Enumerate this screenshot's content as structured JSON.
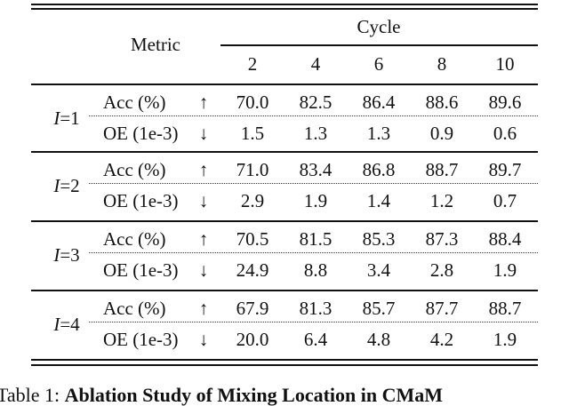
{
  "table": {
    "header": {
      "metric": "Metric",
      "cycle": "Cycle",
      "cycles": [
        "2",
        "4",
        "6",
        "8",
        "10"
      ]
    },
    "groups": [
      {
        "var": "I",
        "index": "=1",
        "rows": [
          {
            "metric": "Acc (%)",
            "arrow": "↑",
            "values": [
              "70.0",
              "82.5",
              "86.4",
              "88.6",
              "89.6"
            ]
          },
          {
            "metric": "OE (1e-3)",
            "arrow": "↓",
            "values": [
              "1.5",
              "1.3",
              "1.3",
              "0.9",
              "0.6"
            ]
          }
        ]
      },
      {
        "var": "I",
        "index": "=2",
        "rows": [
          {
            "metric": "Acc (%)",
            "arrow": "↑",
            "values": [
              "71.0",
              "83.4",
              "86.8",
              "88.7",
              "89.7"
            ]
          },
          {
            "metric": "OE (1e-3)",
            "arrow": "↓",
            "values": [
              "2.9",
              "1.9",
              "1.4",
              "1.2",
              "0.7"
            ]
          }
        ]
      },
      {
        "var": "I",
        "index": "=3",
        "rows": [
          {
            "metric": "Acc (%)",
            "arrow": "↑",
            "values": [
              "70.5",
              "81.5",
              "85.3",
              "87.3",
              "88.4"
            ]
          },
          {
            "metric": "OE (1e-3)",
            "arrow": "↓",
            "values": [
              "24.9",
              "8.8",
              "3.4",
              "2.8",
              "1.9"
            ]
          }
        ]
      },
      {
        "var": "I",
        "index": "=4",
        "rows": [
          {
            "metric": "Acc (%)",
            "arrow": "↑",
            "values": [
              "67.9",
              "81.3",
              "85.7",
              "87.7",
              "88.7"
            ]
          },
          {
            "metric": "OE (1e-3)",
            "arrow": "↓",
            "values": [
              "20.0",
              "6.4",
              "4.8",
              "4.2",
              "1.9"
            ]
          }
        ]
      }
    ]
  },
  "caption": {
    "label": "Table 1:",
    "title": "Ablation Study of Mixing Location in CMaM"
  }
}
